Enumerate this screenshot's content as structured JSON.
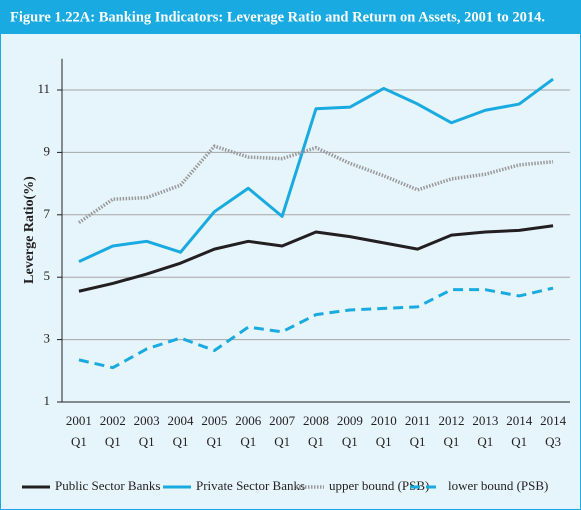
{
  "chart_data": {
    "type": "line",
    "title": "Figure 1.22A:  Banking Indicators: Leverage Ratio and Return on Assets, 2001 to 2014.",
    "y_label": "Leverge Ratio(%)",
    "categories": [
      [
        "2001",
        "Q1"
      ],
      [
        "2002",
        "Q1"
      ],
      [
        "2003",
        "Q1"
      ],
      [
        "2004",
        "Q1"
      ],
      [
        "2005",
        "Q1"
      ],
      [
        "2006",
        "Q1"
      ],
      [
        "2007",
        "Q1"
      ],
      [
        "2008",
        "Q1"
      ],
      [
        "2009",
        "Q1"
      ],
      [
        "2010",
        "Q1"
      ],
      [
        "2011",
        "Q1"
      ],
      [
        "2012",
        "Q1"
      ],
      [
        "2013",
        "Q1"
      ],
      [
        "2014",
        "Q1"
      ],
      [
        "2014",
        "Q3"
      ]
    ],
    "ylim": [
      1,
      12
    ],
    "yticks": [
      1,
      3,
      5,
      7,
      9,
      11
    ],
    "grid": true,
    "legend": "bottom",
    "series": [
      {
        "name": "Public Sector Banks",
        "color": "#231f20",
        "style": "solid",
        "values": [
          4.55,
          4.8,
          5.1,
          5.45,
          5.9,
          6.15,
          6.0,
          6.45,
          6.3,
          6.1,
          5.9,
          6.35,
          6.45,
          6.5,
          6.65
        ]
      },
      {
        "name": "Private Sector Banks",
        "color": "#1aaae2",
        "style": "solid",
        "values": [
          5.5,
          6.0,
          6.15,
          5.8,
          7.1,
          7.85,
          6.95,
          10.4,
          10.45,
          11.05,
          10.55,
          9.95,
          10.35,
          10.55,
          11.35
        ]
      },
      {
        "name": "upper bound (PSB)",
        "color": "#999999",
        "style": "dotted",
        "values": [
          6.75,
          7.5,
          7.55,
          7.95,
          9.2,
          8.85,
          8.8,
          9.15,
          8.65,
          8.25,
          7.8,
          8.15,
          8.3,
          8.6,
          8.7
        ]
      },
      {
        "name": "lower bound (PSB)",
        "color": "#1aaae2",
        "style": "dashed",
        "values": [
          2.35,
          2.1,
          2.7,
          3.05,
          2.65,
          3.4,
          3.25,
          3.8,
          3.95,
          4.0,
          4.05,
          4.6,
          4.6,
          4.4,
          4.65
        ]
      }
    ]
  }
}
